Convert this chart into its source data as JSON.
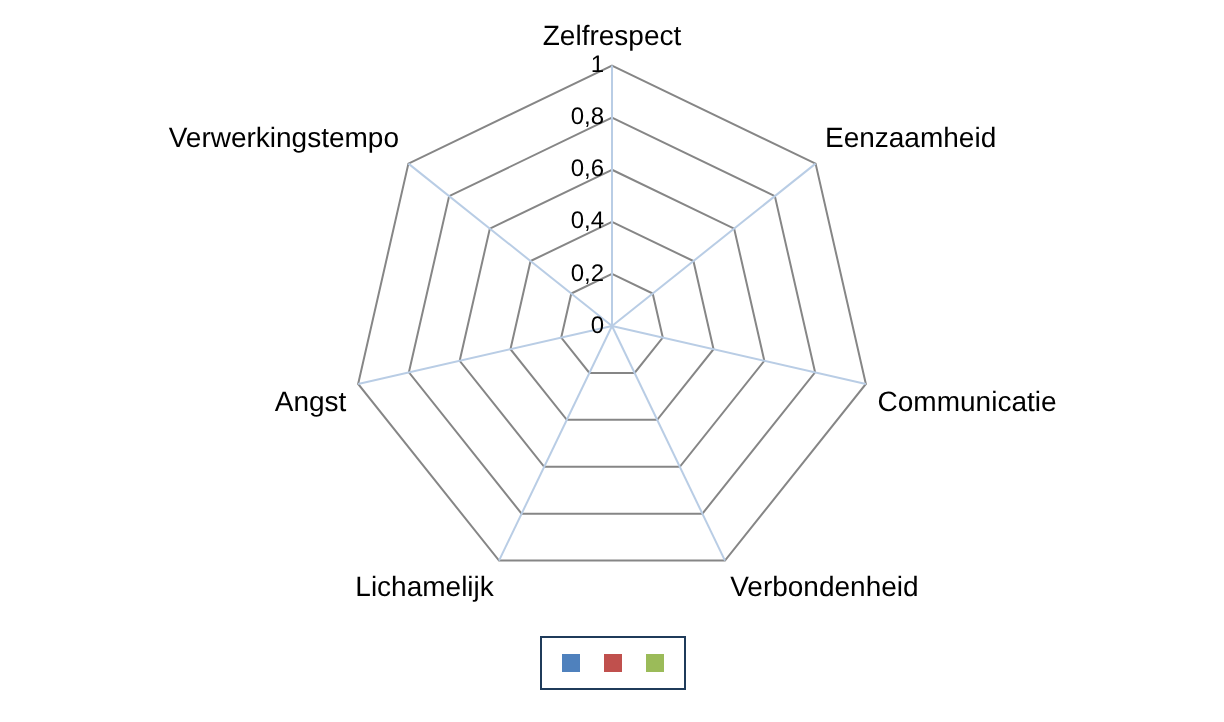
{
  "chart_data": {
    "type": "radar",
    "categories": [
      "Zelfrespect",
      "Eenzaamheid",
      "Communicatie",
      "Verbondenheid",
      "Lichamelijk",
      "Angst",
      "Verwerkingstempo"
    ],
    "series": [
      {
        "color": "#4f81bd",
        "values": [
          null,
          null,
          null,
          null,
          null,
          null,
          null
        ]
      },
      {
        "color": "#c0504d",
        "values": [
          null,
          null,
          null,
          null,
          null,
          null,
          null
        ]
      },
      {
        "color": "#9bbb59",
        "values": [
          null,
          null,
          null,
          null,
          null,
          null,
          null
        ]
      }
    ],
    "ylim": [
      0,
      1
    ],
    "yticks": [
      {
        "value": 0,
        "label": "0"
      },
      {
        "value": 0.2,
        "label": "0,2"
      },
      {
        "value": 0.4,
        "label": "0,4"
      },
      {
        "value": 0.6,
        "label": "0,6"
      },
      {
        "value": 0.8,
        "label": "0,8"
      },
      {
        "value": 1,
        "label": "1"
      }
    ],
    "grid": true
  }
}
